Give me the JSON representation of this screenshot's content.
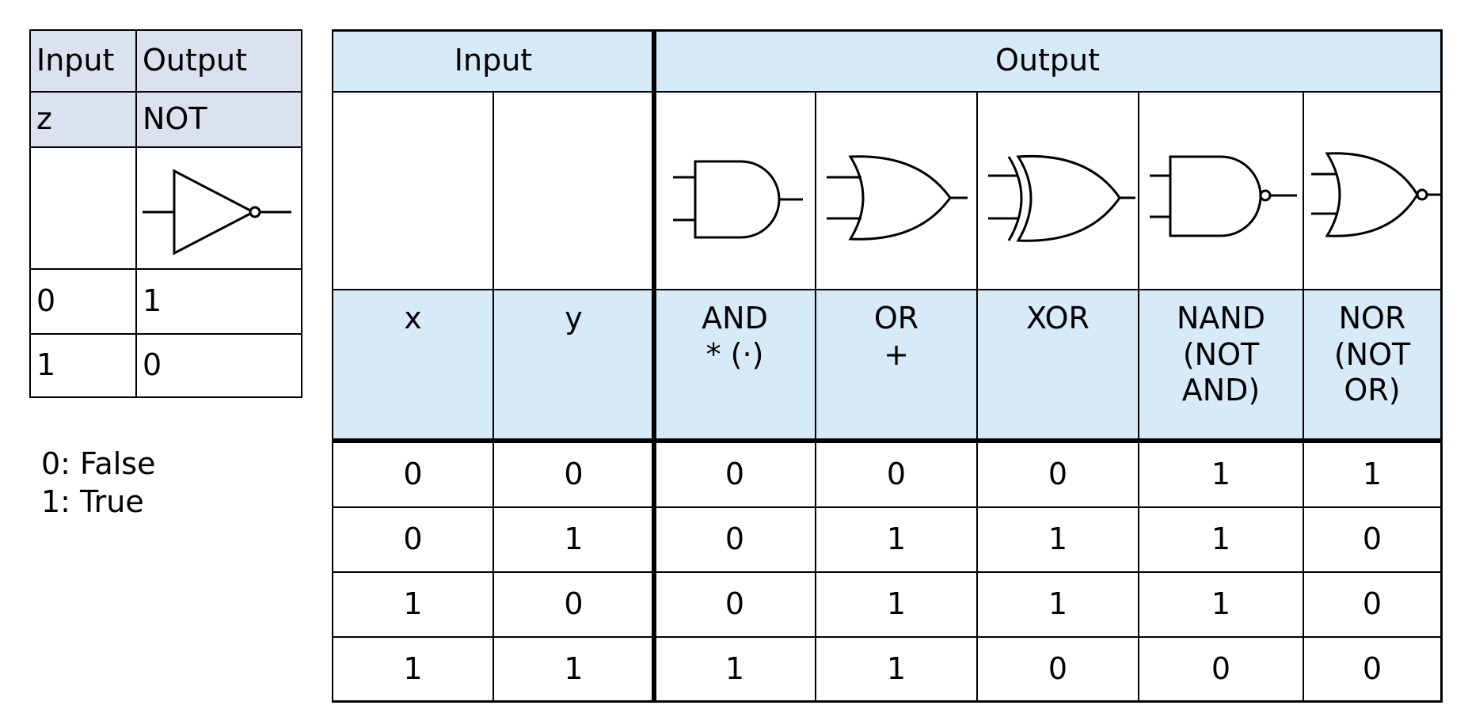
{
  "not_table": {
    "headers": [
      "Input",
      "Output"
    ],
    "labels": [
      "z",
      "NOT"
    ],
    "symbol_icon": "not-gate-symbol",
    "rows": [
      [
        "0",
        "1"
      ],
      [
        "1",
        "0"
      ]
    ]
  },
  "legend": [
    "0: False",
    "1: True"
  ],
  "main_table": {
    "group_headers": [
      "Input",
      "Output"
    ],
    "gate_icons": [
      "and-gate-symbol",
      "or-gate-symbol",
      "xor-gate-symbol",
      "nand-gate-symbol",
      "nor-gate-symbol"
    ],
    "columns": [
      {
        "lines": [
          "x"
        ]
      },
      {
        "lines": [
          "y"
        ]
      },
      {
        "lines": [
          "AND",
          "* (·)"
        ]
      },
      {
        "lines": [
          "OR",
          "+"
        ]
      },
      {
        "lines": [
          "XOR"
        ]
      },
      {
        "lines": [
          "NAND",
          "(NOT",
          "AND)"
        ]
      },
      {
        "lines": [
          "NOR",
          "(NOT",
          "OR)"
        ]
      }
    ],
    "rows": [
      [
        "0",
        "0",
        "0",
        "0",
        "0",
        "1",
        "1"
      ],
      [
        "0",
        "1",
        "0",
        "1",
        "1",
        "1",
        "0"
      ],
      [
        "1",
        "0",
        "0",
        "1",
        "1",
        "1",
        "0"
      ],
      [
        "1",
        "1",
        "1",
        "1",
        "0",
        "0",
        "0"
      ]
    ]
  }
}
